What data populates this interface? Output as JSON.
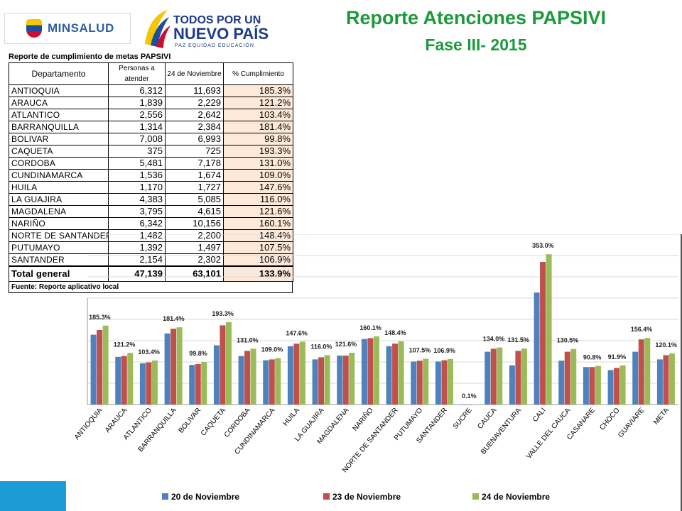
{
  "header": {
    "logo_left_text": "MINSALUD",
    "logo_right_line1": "TODOS POR UN",
    "logo_right_line2": "NUEVO PAÍS",
    "logo_right_line3": "PAZ EQUIDAD EDUCACIÓN",
    "title": "Reporte Atenciones PAPSIVI",
    "subtitle": "Fase III- 2015"
  },
  "colors": {
    "title_green": "#1a9a3b",
    "series_blue": "#4f81bd",
    "series_red": "#c0504d",
    "series_green": "#9bbb59",
    "pct_fill": "#fde9d9",
    "strip_blue": "#1c9bd6"
  },
  "chart_data": [
    {
      "type": "table",
      "title": "Reporte de cumplimiento de metas PAPSIVI",
      "columns": [
        "Departamento",
        "Personas a atender",
        "24 de Noviembre",
        "% Cumplimiento"
      ],
      "rows": [
        [
          "ANTIOQUIA",
          "6,312",
          "11,693",
          "185.3%"
        ],
        [
          "ARAUCA",
          "1,839",
          "2,229",
          "121.2%"
        ],
        [
          "ATLANTICO",
          "2,556",
          "2,642",
          "103.4%"
        ],
        [
          "BARRANQUILLA",
          "1,314",
          "2,384",
          "181.4%"
        ],
        [
          "BOLIVAR",
          "7,008",
          "6,993",
          "99.8%"
        ],
        [
          "CAQUETA",
          "375",
          "725",
          "193.3%"
        ],
        [
          "CORDOBA",
          "5,481",
          "7,178",
          "131.0%"
        ],
        [
          "CUNDINAMARCA",
          "1,536",
          "1,674",
          "109.0%"
        ],
        [
          "HUILA",
          "1,170",
          "1,727",
          "147.6%"
        ],
        [
          "LA GUAJIRA",
          "4,383",
          "5,085",
          "116.0%"
        ],
        [
          "MAGDALENA",
          "3,795",
          "4,615",
          "121.6%"
        ],
        [
          "NARIÑO",
          "6,342",
          "10,156",
          "160.1%"
        ],
        [
          "NORTE DE SANTANDER",
          "1,482",
          "2,200",
          "148.4%"
        ],
        [
          "PUTUMAYO",
          "1,392",
          "1,497",
          "107.5%"
        ],
        [
          "SANTANDER",
          "2,154",
          "2,302",
          "106.9%"
        ]
      ],
      "total": [
        "Total general",
        "47,139",
        "63,101",
        "133.9%"
      ],
      "source": "Fuente: Reporte aplicativo local"
    },
    {
      "type": "bar",
      "categories": [
        "ANTIOQUIA",
        "ARAUCA",
        "ATLANTICO",
        "BARRANQUILLA",
        "BOLIVAR",
        "CAQUETA",
        "CORDOBA",
        "CUNDINAMARCA",
        "HUILA",
        "LA GUAJIRA",
        "MAGDALENA",
        "NARIÑO",
        "NORTE DE SANTANDER",
        "PUTUMAYO",
        "SANTANDER",
        "SUCRE",
        "CAUCA",
        "BUENAVENTURA",
        "CALI",
        "VALLE DEL CAUCA",
        "CASANARE",
        "CHOCO",
        "GUAVIARE",
        "META"
      ],
      "series": [
        {
          "name": "20 de Noviembre",
          "values": [
            164,
            112,
            97,
            167,
            93,
            139,
            114,
            104,
            137,
            106,
            115,
            154,
            137,
            101,
            101,
            0.1,
            124,
            92,
            263,
            103,
            88,
            81,
            124,
            106
          ]
        },
        {
          "name": "23 de Noviembre",
          "values": [
            175,
            114,
            99,
            178,
            95,
            186,
            126,
            106,
            143,
            111,
            115,
            156,
            143,
            103,
            104,
            0.1,
            131,
            126,
            335,
            124,
            88,
            86,
            153,
            116
          ]
        },
        {
          "name": "24 de Noviembre",
          "values": [
            185.3,
            121.2,
            103.4,
            181.4,
            99.8,
            193.3,
            131.0,
            109.0,
            147.6,
            116.0,
            121.6,
            160.1,
            148.4,
            107.5,
            106.9,
            0.1,
            134.0,
            131.5,
            353.0,
            130.5,
            90.8,
            91.9,
            156.4,
            120.1
          ]
        }
      ],
      "data_labels": [
        "185.3%",
        "121.2%",
        "103.4%",
        "181.4%",
        "99.8%",
        "193.3%",
        "131.0%",
        "109.0%",
        "147.6%",
        "116.0%",
        "121.6%",
        "160.1%",
        "148.4%",
        "107.5%",
        "106.9%",
        "0.1%",
        "134.0%",
        "131.5%",
        "353.0%",
        "130.5%",
        "90.8%",
        "91.9%",
        "156.4%",
        "120.1%"
      ],
      "ylim": [
        0,
        400
      ],
      "grid": true,
      "legend_position": "bottom"
    }
  ]
}
